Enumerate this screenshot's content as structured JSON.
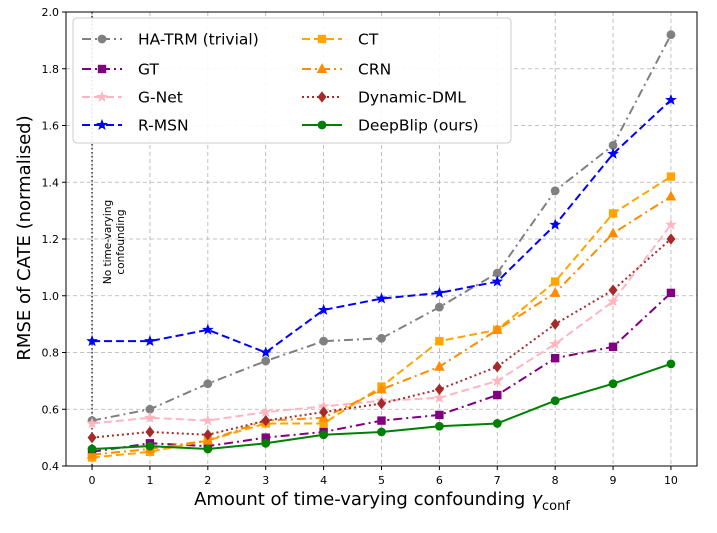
{
  "chart_data": {
    "type": "line",
    "xlabel": "Amount of time-varying confounding",
    "xlabel_symbol": "γ",
    "xlabel_sub": "conf",
    "ylabel": "RMSE of CATE (normalised)",
    "x": [
      0,
      1,
      2,
      3,
      4,
      5,
      6,
      7,
      8,
      9,
      10
    ],
    "xlim": [
      -0.45,
      10.45
    ],
    "ylim": [
      0.4,
      2.0
    ],
    "yticks": [
      0.4,
      0.6,
      0.8,
      1.0,
      1.2,
      1.4,
      1.6,
      1.8,
      2.0
    ],
    "ytick_labels": [
      "0.4",
      "0.6",
      "0.8",
      "1.0",
      "1.2",
      "1.4",
      "1.6",
      "1.8",
      "2.0"
    ],
    "xtick_labels": [
      "0",
      "1",
      "2",
      "3",
      "4",
      "5",
      "6",
      "7",
      "8",
      "9",
      "10"
    ],
    "grid": true,
    "annotation": {
      "lines": [
        "No time-varying",
        "confounding"
      ],
      "x": 0
    },
    "legend_columns": 2,
    "legend_position": "top-left",
    "series": [
      {
        "name": "HA-TRM (trivial)",
        "color": "#808080",
        "dash": "dashdot",
        "marker": "circle",
        "values": [
          0.56,
          0.6,
          0.69,
          0.77,
          0.84,
          0.85,
          0.96,
          1.08,
          1.37,
          1.53,
          1.92
        ]
      },
      {
        "name": "GT",
        "color": "#800080",
        "dash": "dashdot",
        "marker": "square",
        "values": [
          0.45,
          0.48,
          0.47,
          0.5,
          0.52,
          0.56,
          0.58,
          0.65,
          0.78,
          0.82,
          1.01
        ]
      },
      {
        "name": "G-Net",
        "color": "#ffb6c1",
        "dash": "dashed",
        "marker": "star",
        "values": [
          0.55,
          0.57,
          0.56,
          0.59,
          0.61,
          0.63,
          0.64,
          0.7,
          0.83,
          0.98,
          1.25
        ]
      },
      {
        "name": "R-MSN",
        "color": "#0000ff",
        "dash": "dashed",
        "marker": "star",
        "values": [
          0.84,
          0.84,
          0.88,
          0.8,
          0.95,
          0.99,
          1.01,
          1.05,
          1.25,
          1.5,
          1.69
        ]
      },
      {
        "name": "CT",
        "color": "#ffa500",
        "dash": "dashed",
        "marker": "square",
        "values": [
          0.43,
          0.45,
          0.49,
          0.55,
          0.55,
          0.68,
          0.84,
          0.88,
          1.05,
          1.29,
          1.42
        ]
      },
      {
        "name": "CRN",
        "color": "#ff8c00",
        "dash": "dashdot",
        "marker": "triangle",
        "values": [
          0.44,
          0.46,
          0.49,
          0.56,
          0.57,
          0.67,
          0.75,
          0.88,
          1.01,
          1.22,
          1.35
        ]
      },
      {
        "name": "Dynamic-DML",
        "color": "#a52a2a",
        "dash": "dotted",
        "marker": "diamond",
        "values": [
          0.5,
          0.52,
          0.51,
          0.56,
          0.59,
          0.62,
          0.67,
          0.75,
          0.9,
          1.02,
          1.2
        ]
      },
      {
        "name": "DeepBlip (ours)",
        "color": "#008000",
        "dash": "solid",
        "marker": "circle",
        "values": [
          0.46,
          0.47,
          0.46,
          0.48,
          0.51,
          0.52,
          0.54,
          0.55,
          0.63,
          0.69,
          0.76
        ]
      }
    ]
  }
}
